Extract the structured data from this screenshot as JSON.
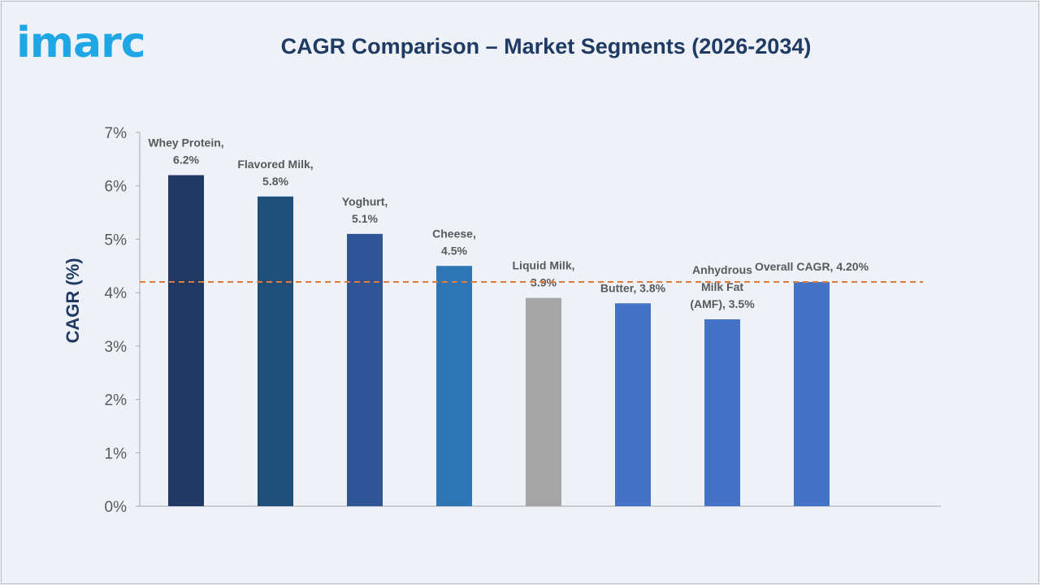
{
  "header": {
    "logo_text": "imarc",
    "title": "CAGR Comparison – Market Segments (2026-2034)"
  },
  "colors": {
    "title": "#1f3a63",
    "logo": "#1ea7e4",
    "reference_line": "#e07b39",
    "axis_text": "#595959",
    "label_text": "#595959"
  },
  "chart_data": {
    "type": "bar",
    "title": "CAGR Comparison – Market Segments (2026-2034)",
    "xlabel": "",
    "ylabel": "CAGR (%)",
    "ylim": [
      0,
      7
    ],
    "yticks": [
      0,
      1,
      2,
      3,
      4,
      5,
      6,
      7
    ],
    "ytick_labels": [
      "0%",
      "1%",
      "2%",
      "3%",
      "4%",
      "5%",
      "6%",
      "7%"
    ],
    "grid": false,
    "legend": "none",
    "categories": [
      "Whey Protein",
      "Flavored Milk",
      "Yoghurt",
      "Cheese",
      "Liquid Milk",
      "Butter",
      "Anhydrous Milk Fat (AMF)",
      "Overall CAGR"
    ],
    "values": [
      6.2,
      5.8,
      5.1,
      4.5,
      3.9,
      3.8,
      3.5,
      4.2
    ],
    "data_labels": [
      [
        "Whey Protein,",
        "6.2%"
      ],
      [
        "Flavored Milk,",
        "5.8%"
      ],
      [
        "Yoghurt,",
        "5.1%"
      ],
      [
        "Cheese,",
        "4.5%"
      ],
      [
        "Liquid Milk,",
        "3.9%"
      ],
      [
        "Butter, 3.8%"
      ],
      [
        "Anhydrous",
        "Milk Fat",
        "(AMF), 3.5%"
      ],
      [
        "Overall CAGR, 4.20%"
      ]
    ],
    "bar_colors": [
      "#1f3864",
      "#1f4e79",
      "#2f5597",
      "#2e75b6",
      "#a5a5a5",
      "#4472c4",
      "#4472c4",
      "#4472c4"
    ],
    "reference_line": {
      "value": 4.2,
      "style": "dashed",
      "color": "#e07b39"
    }
  }
}
